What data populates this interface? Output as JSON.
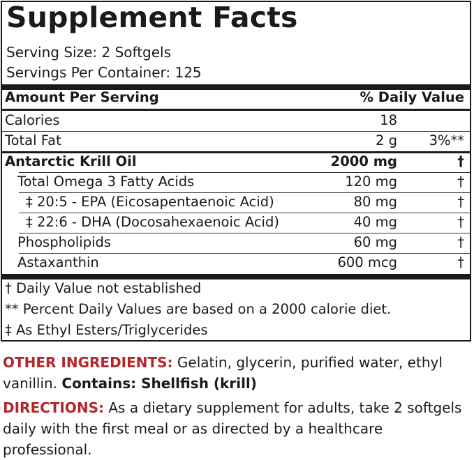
{
  "header": {
    "title": "Supplement Facts",
    "serving_size": "Serving Size: 2 Softgels",
    "servings_per_container": "Servings Per Container: 125"
  },
  "table_header": {
    "amount": "Amount Per Serving",
    "daily_value": "% Daily Value"
  },
  "rows": [
    {
      "name": "Calories",
      "amount": "18",
      "dv": ""
    },
    {
      "name": "Total Fat",
      "amount": "2 g",
      "dv": "3%**"
    },
    {
      "name": "Antarctic Krill Oil",
      "amount": "2000 mg",
      "dv": "†"
    },
    {
      "name": "Total Omega 3 Fatty Acids",
      "amount": "120 mg",
      "dv": "†"
    },
    {
      "name": "‡ 20:5 - EPA (Eicosapentaenoic Acid)",
      "amount": "80 mg",
      "dv": "†"
    },
    {
      "name": "‡ 22:6 - DHA (Docosahexaenoic Acid)",
      "amount": "40 mg",
      "dv": "†"
    },
    {
      "name": "Phospholipids",
      "amount": "60 mg",
      "dv": "†"
    },
    {
      "name": "Astaxanthin",
      "amount": "600 mcg",
      "dv": "†"
    }
  ],
  "footnotes": [
    "† Daily Value not established",
    "** Percent Daily Values are based on a 2000 calorie diet.",
    "‡ As Ethyl Esters/Triglycerides"
  ],
  "other_ingredients": {
    "label": "OTHER INGREDIENTS:",
    "text": " Gelatin, glycerin, purified water, ethyl vanillin. ",
    "contains": "Contains: Shellfish (krill)"
  },
  "directions": {
    "label": "DIRECTIONS:",
    "text": " As a dietary supplement for adults, take 2 softgels daily with the first meal or as directed by a healthcare professional."
  },
  "colors": {
    "accent": "#b3262c",
    "ink": "#1a1a1a"
  }
}
